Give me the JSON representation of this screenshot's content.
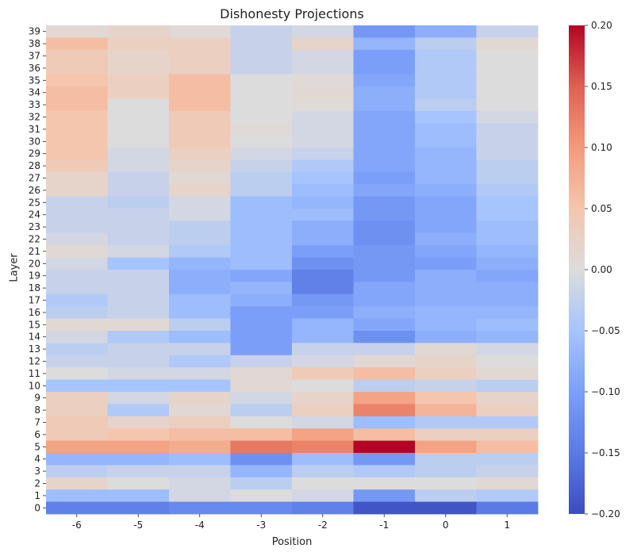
{
  "chart_data": {
    "type": "heatmap",
    "title": "Dishonesty Projections",
    "xlabel": "Position",
    "ylabel": "Layer",
    "x_categories": [
      "-6",
      "-5",
      "-4",
      "-3",
      "-2",
      "-1",
      "0",
      "1"
    ],
    "y_categories": [
      "39",
      "38",
      "37",
      "36",
      "35",
      "34",
      "33",
      "32",
      "31",
      "30",
      "29",
      "28",
      "27",
      "26",
      "25",
      "24",
      "23",
      "22",
      "21",
      "20",
      "19",
      "18",
      "17",
      "16",
      "15",
      "14",
      "13",
      "12",
      "11",
      "10",
      "9",
      "8",
      "7",
      "6",
      "5",
      "4",
      "3",
      "2",
      "1",
      "0"
    ],
    "values": [
      [
        0.01,
        0.02,
        0.005,
        -0.02,
        -0.01,
        -0.11,
        -0.08,
        -0.02
      ],
      [
        0.06,
        0.03,
        0.03,
        -0.02,
        0.02,
        -0.07,
        -0.03,
        0.01
      ],
      [
        0.04,
        0.02,
        0.03,
        -0.02,
        -0.01,
        -0.1,
        -0.04,
        0.0
      ],
      [
        0.04,
        0.02,
        0.03,
        -0.02,
        -0.01,
        -0.1,
        -0.04,
        0.0
      ],
      [
        0.05,
        0.03,
        0.06,
        0.0,
        0.005,
        -0.09,
        -0.04,
        0.0
      ],
      [
        0.06,
        0.03,
        0.06,
        0.0,
        0.01,
        -0.08,
        -0.04,
        0.0
      ],
      [
        0.06,
        0.0,
        0.06,
        0.0,
        0.005,
        -0.08,
        -0.03,
        0.0
      ],
      [
        0.05,
        0.0,
        0.04,
        0.0,
        -0.01,
        -0.09,
        -0.05,
        -0.01
      ],
      [
        0.05,
        0.0,
        0.04,
        0.005,
        -0.01,
        -0.09,
        -0.06,
        -0.02
      ],
      [
        0.05,
        0.0,
        0.04,
        0.0,
        -0.01,
        -0.09,
        -0.06,
        -0.02
      ],
      [
        0.05,
        -0.01,
        0.03,
        -0.01,
        -0.02,
        -0.09,
        -0.07,
        -0.02
      ],
      [
        0.04,
        -0.01,
        0.02,
        -0.02,
        -0.04,
        -0.09,
        -0.07,
        -0.03
      ],
      [
        0.02,
        -0.02,
        0.01,
        -0.03,
        -0.05,
        -0.1,
        -0.07,
        -0.03
      ],
      [
        0.02,
        -0.02,
        0.02,
        -0.03,
        -0.06,
        -0.09,
        -0.08,
        -0.04
      ],
      [
        -0.02,
        -0.03,
        -0.01,
        -0.06,
        -0.07,
        -0.11,
        -0.09,
        -0.05
      ],
      [
        -0.02,
        -0.02,
        -0.01,
        -0.06,
        -0.06,
        -0.11,
        -0.09,
        -0.05
      ],
      [
        -0.02,
        -0.02,
        -0.03,
        -0.06,
        -0.08,
        -0.12,
        -0.09,
        -0.06
      ],
      [
        -0.01,
        -0.02,
        -0.03,
        -0.06,
        -0.08,
        -0.12,
        -0.08,
        -0.06
      ],
      [
        0.01,
        -0.01,
        -0.04,
        -0.06,
        -0.1,
        -0.11,
        -0.09,
        -0.07
      ],
      [
        -0.01,
        -0.05,
        -0.07,
        -0.06,
        -0.12,
        -0.11,
        -0.1,
        -0.08
      ],
      [
        -0.02,
        -0.02,
        -0.08,
        -0.09,
        -0.14,
        -0.11,
        -0.08,
        -0.09
      ],
      [
        -0.02,
        -0.02,
        -0.08,
        -0.07,
        -0.14,
        -0.09,
        -0.08,
        -0.08
      ],
      [
        -0.04,
        -0.02,
        -0.06,
        -0.08,
        -0.11,
        -0.09,
        -0.08,
        -0.08
      ],
      [
        -0.03,
        -0.02,
        -0.06,
        -0.1,
        -0.1,
        -0.08,
        -0.07,
        -0.07
      ],
      [
        0.01,
        0.01,
        -0.03,
        -0.1,
        -0.07,
        -0.09,
        -0.07,
        -0.06
      ],
      [
        -0.01,
        -0.04,
        -0.06,
        -0.1,
        -0.07,
        -0.12,
        -0.08,
        -0.07
      ],
      [
        -0.03,
        -0.02,
        -0.02,
        -0.1,
        -0.02,
        -0.02,
        0.01,
        -0.01
      ],
      [
        -0.02,
        -0.02,
        -0.04,
        -0.02,
        -0.01,
        0.01,
        0.02,
        0.0
      ],
      [
        0.0,
        -0.01,
        -0.01,
        0.01,
        0.04,
        0.06,
        0.03,
        0.01
      ],
      [
        -0.05,
        -0.05,
        -0.05,
        0.01,
        0.0,
        -0.03,
        -0.02,
        -0.03
      ],
      [
        0.03,
        -0.01,
        0.02,
        -0.01,
        0.02,
        0.09,
        0.05,
        0.02
      ],
      [
        0.03,
        -0.04,
        0.01,
        -0.03,
        0.03,
        0.12,
        0.07,
        0.03
      ],
      [
        0.04,
        0.02,
        0.03,
        0.0,
        -0.01,
        -0.06,
        -0.04,
        -0.04
      ],
      [
        0.04,
        0.05,
        0.06,
        0.06,
        0.09,
        0.06,
        0.03,
        0.03
      ],
      [
        0.09,
        0.09,
        0.08,
        0.13,
        0.12,
        0.2,
        0.09,
        0.06
      ],
      [
        -0.07,
        -0.07,
        -0.06,
        -0.12,
        -0.06,
        -0.11,
        -0.03,
        -0.03
      ],
      [
        -0.03,
        -0.02,
        -0.02,
        -0.07,
        -0.03,
        -0.04,
        -0.03,
        -0.02
      ],
      [
        0.02,
        0.0,
        -0.01,
        -0.03,
        0.0,
        0.0,
        0.0,
        0.01
      ],
      [
        -0.06,
        -0.06,
        -0.01,
        0.0,
        -0.01,
        -0.11,
        -0.03,
        -0.04
      ],
      [
        -0.14,
        -0.14,
        -0.13,
        -0.13,
        -0.14,
        -0.19,
        -0.19,
        -0.15
      ]
    ],
    "vmin": -0.2,
    "vmax": 0.2,
    "colormap": "coolwarm",
    "colorbar_ticks": [
      "0.20",
      "0.15",
      "0.10",
      "0.05",
      "0.00",
      "−0.05",
      "−0.10",
      "−0.15",
      "−0.20"
    ],
    "colorbar_tick_values": [
      0.2,
      0.15,
      0.1,
      0.05,
      0.0,
      -0.05,
      -0.1,
      -0.15,
      -0.2
    ]
  }
}
